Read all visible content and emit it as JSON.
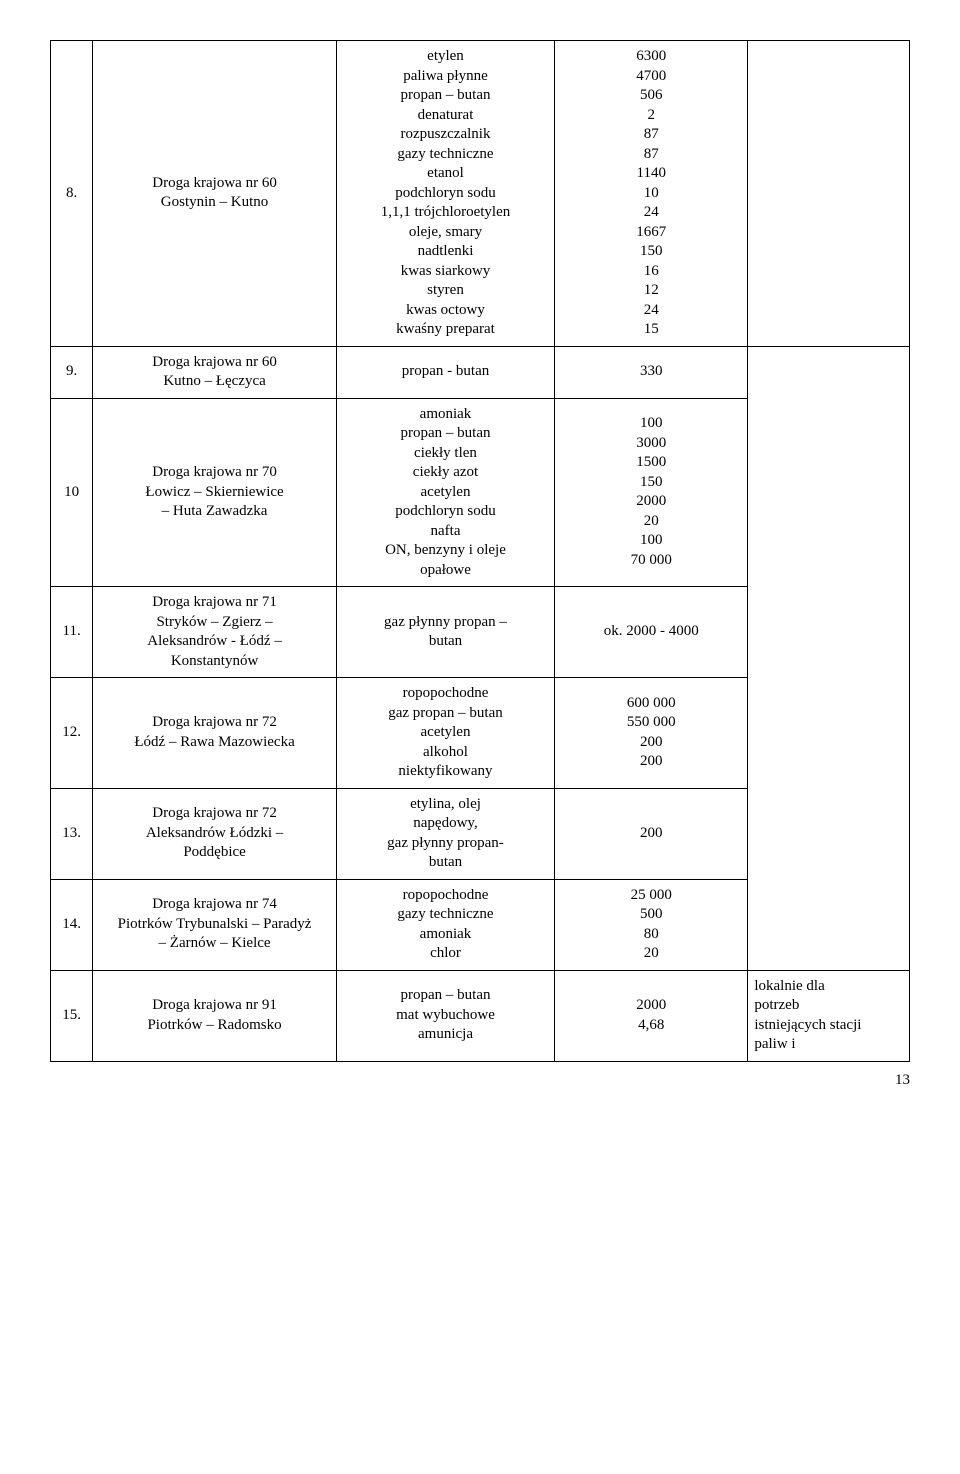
{
  "rows": [
    {
      "idx": "8.",
      "route": "Droga krajowa nr 60\nGostynin – Kutno",
      "substances": "etylen\npaliwa płynne\npropan – butan\ndenaturat\nrozpuszczalnik\ngazy techniczne\netanol\npodchloryn sodu\n1,1,1 trójchloroetylen\noleje, smary\nnadtlenki\nkwas siarkowy\nstyren\nkwas octowy\nkwaśny preparat",
      "values": "6300\n4700\n506\n2\n87\n87\n1140\n10\n24\n1667\n150\n16\n12\n24\n15",
      "note": ""
    },
    {
      "idx": "9.",
      "route": "Droga krajowa nr 60\nKutno – Łęczyca",
      "substances": "propan - butan",
      "values": "330",
      "note": ""
    },
    {
      "idx": "10",
      "route": "Droga krajowa nr 70\nŁowicz – Skierniewice\n– Huta Zawadzka",
      "substances": "amoniak\npropan – butan\nciekły tlen\nciekły azot\nacetylen\npodchloryn sodu\nnafta\nON, benzyny i oleje\nopałowe",
      "values": "100\n3000\n1500\n150\n2000\n20\n100\n70 000",
      "note": ""
    },
    {
      "idx": "11.",
      "route": "Droga krajowa nr 71\nStryków – Zgierz –\nAleksandrów -  Łódź –\nKonstantynów",
      "substances": "gaz płynny propan –\nbutan",
      "values": "ok. 2000 - 4000",
      "note": ""
    },
    {
      "idx": "12.",
      "route": "Droga krajowa nr 72\nŁódź – Rawa Mazowiecka",
      "substances": "ropopochodne\ngaz propan – butan\nacetylen\nalkohol\nniektyfikowany",
      "values": "600 000\n550 000\n200\n200",
      "note": ""
    },
    {
      "idx": "13.",
      "route": "Droga krajowa nr 72\nAleksandrów Łódzki –\nPoddębice",
      "substances": "etylina, olej\nnapędowy,\ngaz płynny propan-\nbutan",
      "values": "200",
      "note": ""
    },
    {
      "idx": "14.",
      "route": "Droga krajowa nr 74\nPiotrków Trybunalski – Paradyż\n– Żarnów – Kielce",
      "substances": "ropopochodne\ngazy techniczne\namoniak\nchlor",
      "values": "25 000\n500\n80\n20",
      "note": ""
    },
    {
      "idx": "15.",
      "route": "Droga krajowa nr 91\nPiotrków – Radomsko",
      "substances": "propan – butan\nmat wybuchowe\namunicja",
      "values": "2000\n4,68",
      "note": "lokalnie dla\npotrzeb\nistniejących stacji\npaliw i"
    }
  ],
  "page_number": "13"
}
